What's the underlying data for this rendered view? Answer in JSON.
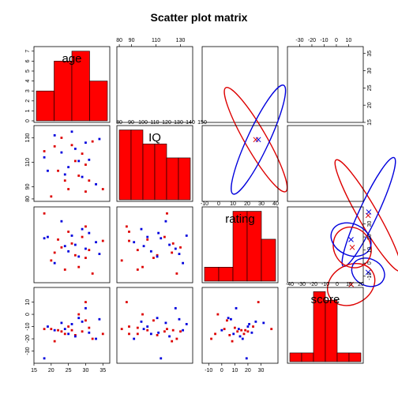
{
  "chart_data": {
    "type": "scatter",
    "title": "Scatter plot matrix",
    "variables": [
      "age",
      "IQ",
      "rating",
      "score"
    ],
    "ranges": {
      "age": [
        15,
        37
      ],
      "IQ": [
        78,
        140
      ],
      "rating": [
        -15,
        43
      ],
      "score": [
        -40,
        22
      ]
    },
    "ticks": {
      "age": [
        15,
        20,
        25,
        30,
        35
      ],
      "IQ": [
        80,
        90,
        110,
        130
      ],
      "rating": [
        -10,
        0,
        10,
        20,
        30
      ],
      "score": [
        -30,
        -20,
        -10,
        0,
        10
      ]
    },
    "hist_ticks": {
      "age": [
        0,
        1,
        2,
        3,
        4,
        5,
        6,
        7
      ],
      "IQ": [
        0,
        1,
        2,
        3
      ],
      "rating": [
        0,
        1,
        2,
        3,
        4
      ],
      "score": []
    },
    "hist_ytick_labels": {
      "age": [
        "0",
        "1",
        "2",
        "3",
        "4",
        "5",
        "6",
        "7"
      ],
      "IQ": [],
      "rating": [],
      "score": []
    },
    "hist_xtick_labels": {
      "age": [],
      "IQ": [
        "80",
        "90",
        "100",
        "110",
        "120",
        "130",
        "140",
        "150"
      ],
      "rating": [
        "-10",
        "0",
        "10",
        "20",
        "30",
        "40"
      ],
      "score": [
        "-40",
        "-30",
        "-20",
        "-10",
        "0",
        "10",
        "20"
      ]
    },
    "histograms": {
      "age": {
        "breaks": [
          15,
          20,
          25,
          30,
          35
        ],
        "counts": [
          3,
          6,
          7,
          4
        ],
        "ymax": 7.3
      },
      "IQ": {
        "breaks": [
          80,
          90,
          100,
          110,
          120,
          130,
          140
        ],
        "counts": [
          5,
          5,
          4,
          4,
          3,
          3
        ],
        "ymax": 5.2
      },
      "rating": {
        "breaks": [
          -10,
          0,
          10,
          20,
          30,
          40
        ],
        "counts": [
          1,
          1,
          5,
          5,
          3
        ],
        "ymax": 5.2
      },
      "score": {
        "breaks": [
          -40,
          -30,
          -20,
          -10,
          0,
          10,
          20
        ],
        "counts": [
          1,
          1,
          8,
          7,
          1,
          1
        ],
        "ymax": 8.3
      }
    },
    "series": [
      {
        "color": "#dd0000",
        "points": [
          {
            "age": 18,
            "IQ": 119,
            "rating": 38,
            "score": -12
          },
          {
            "age": 20,
            "IQ": 82,
            "rating": 2,
            "score": -12
          },
          {
            "age": 21,
            "IQ": 123,
            "rating": 8,
            "score": -22
          },
          {
            "age": 22,
            "IQ": 103,
            "rating": 18,
            "score": -13
          },
          {
            "age": 23,
            "IQ": 130,
            "rating": 12,
            "score": -14
          },
          {
            "age": 24,
            "IQ": 95,
            "rating": -5,
            "score": -16
          },
          {
            "age": 25,
            "IQ": 88,
            "rating": 24,
            "score": -10
          },
          {
            "age": 26,
            "IQ": 124,
            "rating": 15,
            "score": -13
          },
          {
            "age": 27,
            "IQ": 111,
            "rating": 6,
            "score": -17
          },
          {
            "age": 28,
            "IQ": 99,
            "rating": -3,
            "score": 0
          },
          {
            "age": 29,
            "IQ": 117,
            "rating": 20,
            "score": -14
          },
          {
            "age": 30,
            "IQ": 86,
            "rating": 28,
            "score": 10
          },
          {
            "age": 30,
            "IQ": 108,
            "rating": 4,
            "score": -5
          },
          {
            "age": 31,
            "IQ": 95,
            "rating": 10,
            "score": -11
          },
          {
            "age": 32,
            "IQ": 127,
            "rating": -8,
            "score": -20
          },
          {
            "age": 35,
            "IQ": 88,
            "rating": 17,
            "score": -16
          }
        ]
      },
      {
        "color": "#0000dd",
        "points": [
          {
            "age": 18,
            "IQ": 114,
            "rating": 19,
            "score": -36
          },
          {
            "age": 19,
            "IQ": 103,
            "rating": 20,
            "score": -10
          },
          {
            "age": 21,
            "IQ": 132,
            "rating": 0,
            "score": -13
          },
          {
            "age": 23,
            "IQ": 118,
            "rating": 32,
            "score": -7
          },
          {
            "age": 24,
            "IQ": 100,
            "rating": 13,
            "score": -12
          },
          {
            "age": 25,
            "IQ": 106,
            "rating": 9,
            "score": -16
          },
          {
            "age": 26,
            "IQ": 135,
            "rating": 21,
            "score": -8
          },
          {
            "age": 27,
            "IQ": 121,
            "rating": 14,
            "score": -18
          },
          {
            "age": 28,
            "IQ": 111,
            "rating": 5,
            "score": -3
          },
          {
            "age": 29,
            "IQ": 98,
            "rating": 26,
            "score": -6
          },
          {
            "age": 30,
            "IQ": 126,
            "rating": 11,
            "score": 5
          },
          {
            "age": 31,
            "IQ": 112,
            "rating": 23,
            "score": -15
          },
          {
            "age": 33,
            "IQ": 92,
            "rating": 16,
            "score": -20
          },
          {
            "age": 34,
            "IQ": 129,
            "rating": 7,
            "score": -4
          }
        ]
      }
    ],
    "ellipses": {
      "age|IQ": [
        {
          "color": "#dd0000",
          "cx": 25,
          "cy": 104,
          "rx": 9.6,
          "ry": 18.6
        },
        {
          "color": "#0000dd",
          "cx": 28,
          "cy": 103,
          "rx": 8.7,
          "ry": 21.7
        }
      ],
      "age|rating": [
        {
          "color": "#dd0000",
          "cx": 26,
          "cy": 10,
          "rx": 8.3,
          "ry": 17.4
        },
        {
          "color": "#0000dd",
          "cx": 28,
          "cy": 10,
          "rx": 8.3,
          "ry": 17.4
        }
      ],
      "age|score": [
        {
          "color": "#dd0000",
          "cx": 26,
          "cy": -12,
          "rx": 7.9,
          "ry": 18.6
        },
        {
          "color": "#0000dd",
          "cx": 26.5,
          "cy": -11,
          "rx": 7.5,
          "ry": 17.4
        }
      ],
      "IQ|rating": [
        {
          "color": "#dd0000",
          "cx": 99,
          "cy": 10,
          "rx": 19,
          "ry": 16
        },
        {
          "color": "#0000dd",
          "cx": 112,
          "cy": 20,
          "rx": 13,
          "ry": 11
        }
      ],
      "IQ|score": [
        {
          "color": "#dd0000",
          "cx": 105,
          "cy": -14,
          "rx": 20,
          "ry": 14
        },
        {
          "color": "#0000dd",
          "cx": 110,
          "cy": -8,
          "rx": 13,
          "ry": 12
        }
      ],
      "rating|score": [
        {
          "color": "#dd0000",
          "cx": 13,
          "cy": 12,
          "rx": 15,
          "ry": 16
        },
        {
          "color": "#0000dd",
          "cx": 12,
          "cy": 18,
          "rx": 17,
          "ry": 12
        }
      ]
    }
  }
}
